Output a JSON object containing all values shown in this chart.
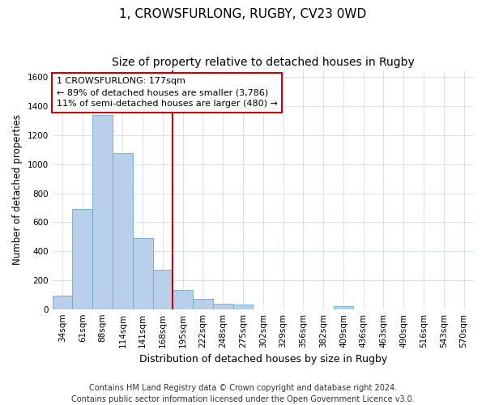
{
  "title": "1, CROWSFURLONG, RUGBY, CV23 0WD",
  "subtitle": "Size of property relative to detached houses in Rugby",
  "xlabel": "Distribution of detached houses by size in Rugby",
  "ylabel": "Number of detached properties",
  "categories": [
    "34sqm",
    "61sqm",
    "88sqm",
    "114sqm",
    "141sqm",
    "168sqm",
    "195sqm",
    "222sqm",
    "248sqm",
    "275sqm",
    "302sqm",
    "329sqm",
    "356sqm",
    "382sqm",
    "409sqm",
    "436sqm",
    "463sqm",
    "490sqm",
    "516sqm",
    "543sqm",
    "570sqm"
  ],
  "values": [
    95,
    690,
    1340,
    1080,
    490,
    270,
    135,
    70,
    40,
    30,
    0,
    0,
    0,
    0,
    20,
    0,
    0,
    0,
    0,
    0,
    0
  ],
  "bar_color": "#b8d0ea",
  "bar_edgecolor": "#6aaad4",
  "vline_color": "#cc0000",
  "annotation_line1": "1 CROWSFURLONG: 177sqm",
  "annotation_line2": "← 89% of detached houses are smaller (3,786)",
  "annotation_line3": "11% of semi-detached houses are larger (480) →",
  "annotation_box_color": "#cc0000",
  "ylim": [
    0,
    1650
  ],
  "yticks": [
    0,
    200,
    400,
    600,
    800,
    1000,
    1200,
    1400,
    1600
  ],
  "footer_line1": "Contains HM Land Registry data © Crown copyright and database right 2024.",
  "footer_line2": "Contains public sector information licensed under the Open Government Licence v3.0.",
  "bg_color": "#ffffff",
  "grid_color": "#c8d8ec",
  "title_fontsize": 11,
  "subtitle_fontsize": 10,
  "tick_fontsize": 7.5,
  "ylabel_fontsize": 8.5,
  "xlabel_fontsize": 9,
  "footer_fontsize": 7,
  "annotation_fontsize": 8
}
